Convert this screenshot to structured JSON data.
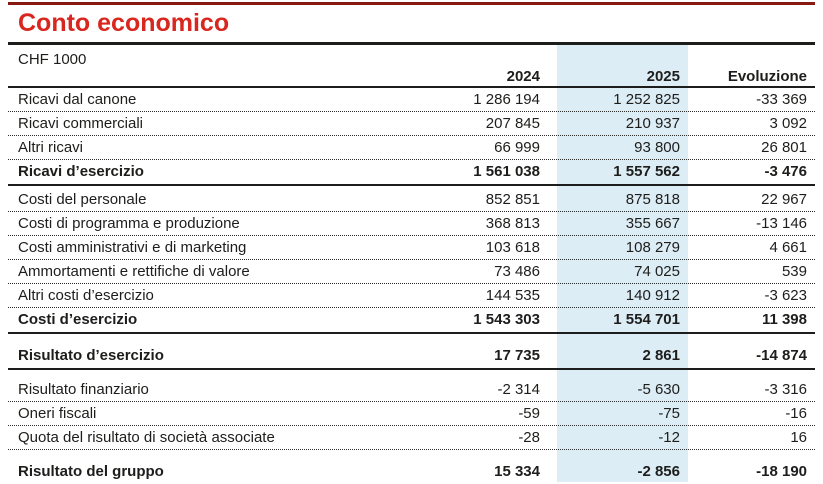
{
  "page": {
    "title": "Conto economico",
    "unit_label": "CHF 1000"
  },
  "columns": {
    "col1": "2024",
    "col2": "2025",
    "col3": "Evoluzione"
  },
  "colors": {
    "title_red": "#d9261f",
    "top_rule_maroon": "#861a13",
    "highlight_column_blue": "#ddedf6",
    "text": "#1d1d1b"
  },
  "table": {
    "sections": [
      {
        "rows": [
          {
            "label": "Ricavi dal canone",
            "y2024": "1 286 194",
            "y2025": "1 252 825",
            "evolution": "-33 369",
            "bold": false,
            "sep": "dotted"
          },
          {
            "label": "Ricavi commerciali",
            "y2024": "207 845",
            "y2025": "210 937",
            "evolution": "3 092",
            "bold": false,
            "sep": "dotted"
          },
          {
            "label": "Altri ricavi",
            "y2024": "66 999",
            "y2025": "93 800",
            "evolution": "26 801",
            "bold": false,
            "sep": "dotted"
          },
          {
            "label": "Ricavi d’esercizio",
            "y2024": "1 561 038",
            "y2025": "1 557 562",
            "evolution": "-3 476",
            "bold": true,
            "sep": "solid"
          }
        ]
      },
      {
        "rows": [
          {
            "label": "Costi del personale",
            "y2024": "852 851",
            "y2025": "875 818",
            "evolution": "22 967",
            "bold": false,
            "sep": "dotted"
          },
          {
            "label": "Costi di programma e produzione",
            "y2024": "368 813",
            "y2025": "355 667",
            "evolution": "-13 146",
            "bold": false,
            "sep": "dotted"
          },
          {
            "label": "Costi amministrativi e di marketing",
            "y2024": "103 618",
            "y2025": "108 279",
            "evolution": "4 661",
            "bold": false,
            "sep": "dotted"
          },
          {
            "label": "Ammortamenti e rettifiche di valore",
            "y2024": "73 486",
            "y2025": "74 025",
            "evolution": "539",
            "bold": false,
            "sep": "dotted"
          },
          {
            "label": "Altri costi d’esercizio",
            "y2024": "144 535",
            "y2025": "140 912",
            "evolution": "-3 623",
            "bold": false,
            "sep": "dotted"
          },
          {
            "label": "Costi d’esercizio",
            "y2024": "1 543 303",
            "y2025": "1 554 701",
            "evolution": "11 398",
            "bold": true,
            "sep": "solid"
          }
        ]
      },
      {
        "rows": [
          {
            "label": "Risultato d’esercizio",
            "y2024": "17 735",
            "y2025": "2 861",
            "evolution": "-14 874",
            "bold": true,
            "sep": "solid"
          }
        ]
      },
      {
        "rows": [
          {
            "label": "Risultato finanziario",
            "y2024": "-2 314",
            "y2025": "-5 630",
            "evolution": "-3 316",
            "bold": false,
            "sep": "dotted"
          },
          {
            "label": "Oneri fiscali",
            "y2024": "-59",
            "y2025": "-75",
            "evolution": "-16",
            "bold": false,
            "sep": "dotted"
          },
          {
            "label": "Quota del risultato di società associate",
            "y2024": "-28",
            "y2025": "-12",
            "evolution": "16",
            "bold": false,
            "sep": "dotted"
          }
        ]
      },
      {
        "rows": [
          {
            "label": "Risultato del gruppo",
            "y2024": "15 334",
            "y2025": "-2 856",
            "evolution": "-18 190",
            "bold": true,
            "sep": "dotted"
          }
        ]
      }
    ]
  }
}
